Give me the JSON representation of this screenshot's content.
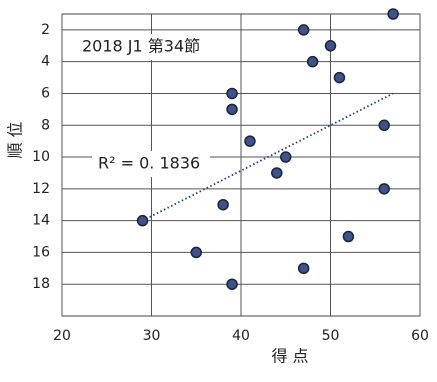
{
  "chart_data": {
    "type": "scatter",
    "title": "2018 J1 第34節",
    "x_label": "得 点",
    "y_label": "順 位",
    "x": [
      57,
      47,
      50,
      48,
      51,
      39,
      39,
      56,
      41,
      45,
      44,
      56,
      38,
      29,
      52,
      35,
      47,
      39
    ],
    "y": [
      1,
      2,
      3,
      4,
      5,
      6,
      7,
      8,
      9,
      10,
      11,
      12,
      13,
      14,
      15,
      16,
      17,
      18
    ],
    "color": "#3e5489",
    "xlim": [
      20,
      60
    ],
    "xticks": [
      20,
      30,
      40,
      50,
      60
    ],
    "ylim": [
      1,
      20
    ],
    "yticks": [
      2,
      4,
      6,
      8,
      10,
      12,
      14,
      16,
      18
    ],
    "y_inverted": true,
    "grid": true,
    "trendline": {
      "x": [
        29,
        57
      ],
      "y": [
        14,
        6
      ],
      "color": "#1f3a93"
    },
    "annotation": "R² = 0. 1836"
  }
}
